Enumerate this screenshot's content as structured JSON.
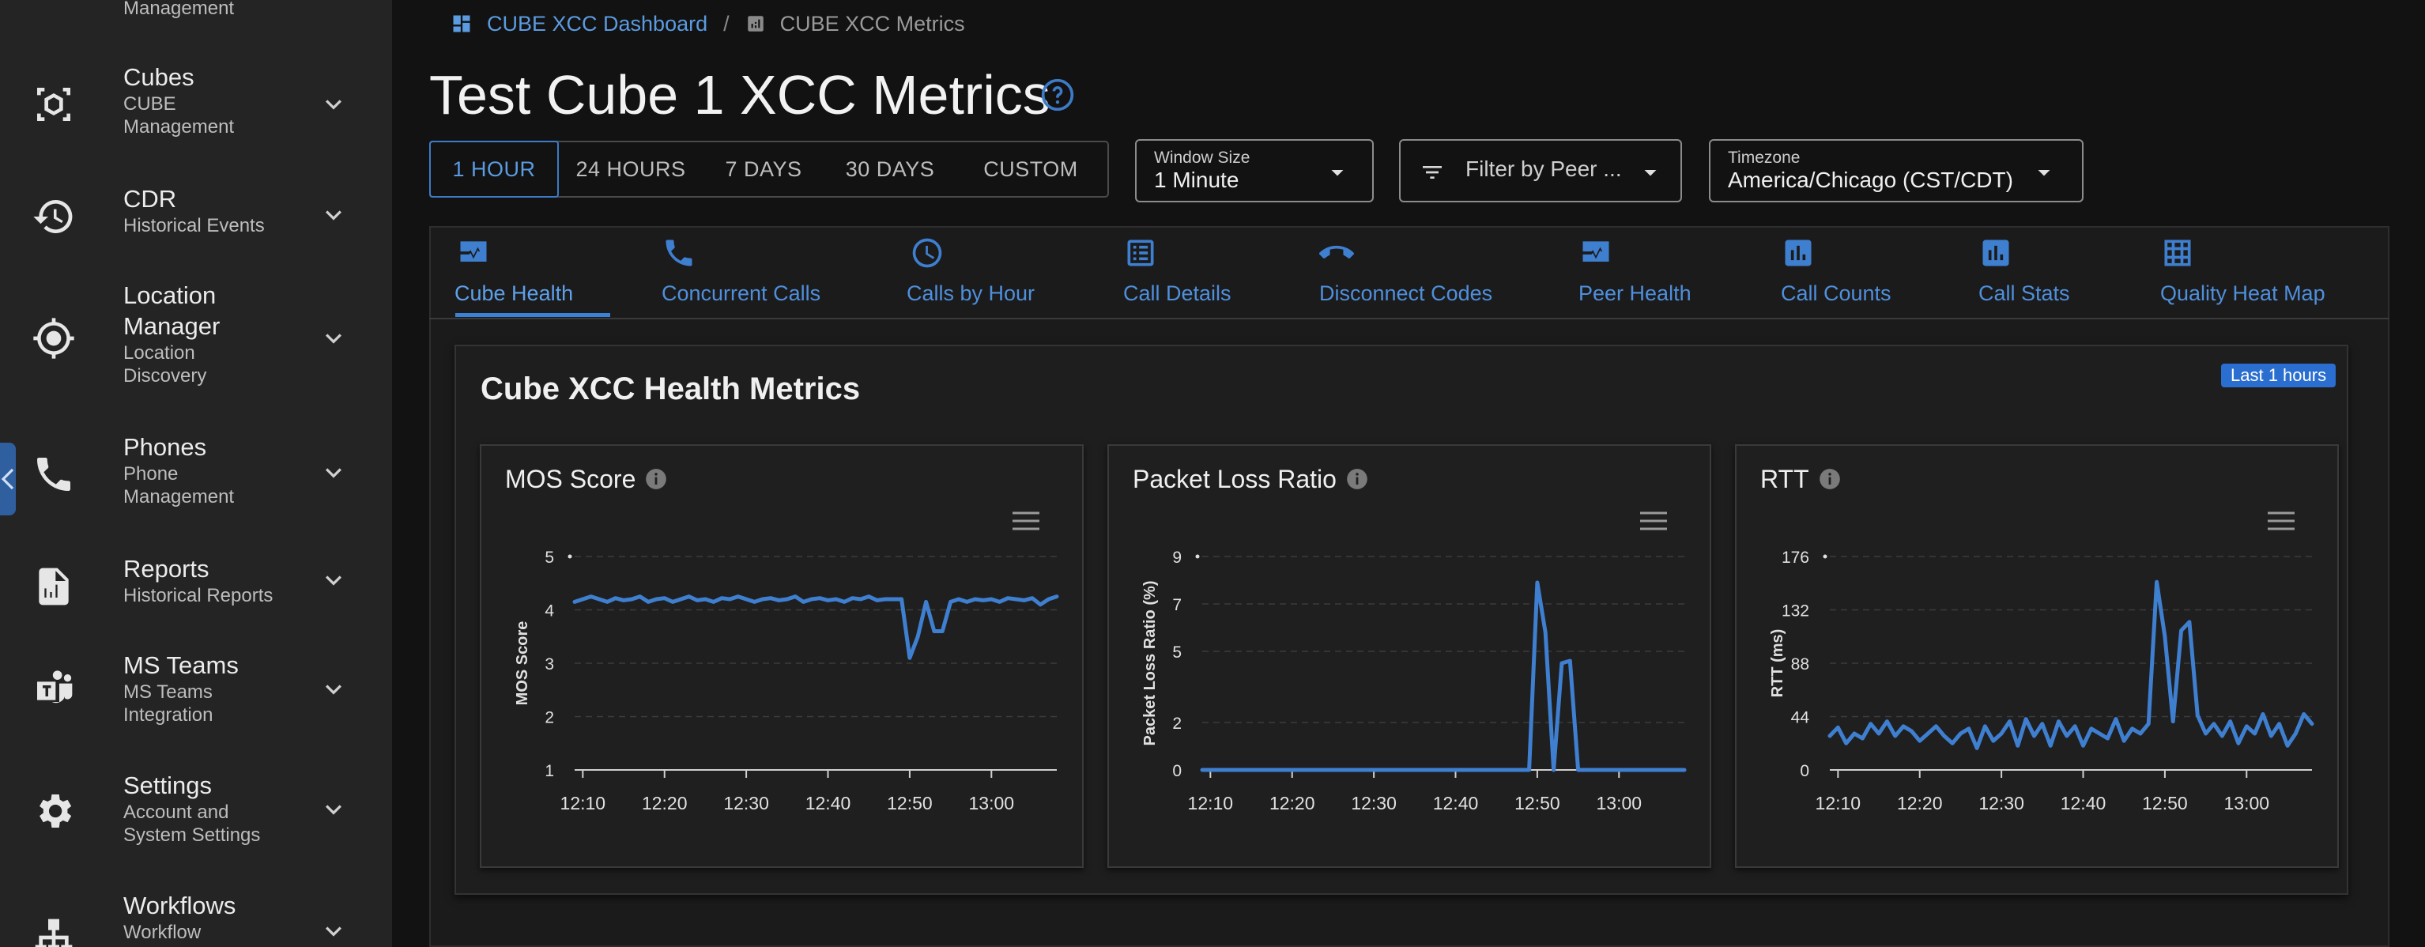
{
  "sidebar": {
    "items": [
      {
        "title": "",
        "sub": [
          "Management"
        ],
        "icon": "none"
      },
      {
        "title": "Cubes",
        "sub": [
          "CUBE",
          "Management"
        ],
        "icon": "cube-icon"
      },
      {
        "title": "CDR",
        "sub": [
          "Historical Events"
        ],
        "icon": "history-icon"
      },
      {
        "title": "Location Manager",
        "title_lines": [
          "Location",
          "Manager"
        ],
        "sub": [
          "Location",
          "Discovery"
        ],
        "icon": "location-target-icon"
      },
      {
        "title": "Phones",
        "sub": [
          "Phone",
          "Management"
        ],
        "icon": "phone-icon"
      },
      {
        "title": "Reports",
        "sub": [
          "Historical Reports"
        ],
        "icon": "report-icon"
      },
      {
        "title": "MS Teams",
        "sub": [
          "MS Teams",
          "Integration"
        ],
        "icon": "teams-icon"
      },
      {
        "title": "Settings",
        "sub": [
          "Account and",
          "System Settings"
        ],
        "icon": "gear-icon"
      },
      {
        "title": "Workflows",
        "sub": [
          "Workflow"
        ],
        "icon": "workflow-icon"
      }
    ]
  },
  "breadcrumb": {
    "link": "CUBE XCC Dashboard",
    "separator": "/",
    "current": "CUBE XCC Metrics"
  },
  "page_title": "Test Cube 1 XCC Metrics",
  "time_ranges": {
    "options": [
      "1 HOUR",
      "24 HOURS",
      "7 DAYS",
      "30 DAYS",
      "CUSTOM"
    ],
    "selected": "1 HOUR"
  },
  "window_size": {
    "label": "Window Size",
    "value": "1 Minute"
  },
  "peer_filter": {
    "placeholder": "Filter by Peer ..."
  },
  "timezone": {
    "label": "Timezone",
    "value": "America/Chicago (CST/CDT)"
  },
  "tabs": [
    {
      "label": "Cube Health",
      "icon": "monitor-heart-icon",
      "active": true
    },
    {
      "label": "Concurrent Calls",
      "icon": "phone-icon"
    },
    {
      "label": "Calls by Hour",
      "icon": "clock-icon"
    },
    {
      "label": "Call Details",
      "icon": "list-icon"
    },
    {
      "label": "Disconnect Codes",
      "icon": "call-end-icon"
    },
    {
      "label": "Peer Health",
      "icon": "monitor-heart-icon"
    },
    {
      "label": "Call Counts",
      "icon": "bar-chart-icon"
    },
    {
      "label": "Call Stats",
      "icon": "bar-chart-icon"
    },
    {
      "label": "Quality Heat Map",
      "icon": "grid-icon"
    }
  ],
  "health": {
    "title": "Cube XCC Health Metrics",
    "badge": "Last 1 hours"
  },
  "colors": {
    "accent": "#3b82d6",
    "line": "#3f7fd0"
  },
  "chart_data": [
    {
      "type": "line",
      "title": "MOS Score",
      "xlabel": "",
      "ylabel": "MOS Score",
      "ylim": [
        1,
        5
      ],
      "yticks": [
        1,
        2,
        3,
        4,
        5
      ],
      "xticks": [
        "12:10",
        "12:20",
        "12:30",
        "12:40",
        "12:50",
        "13:00"
      ],
      "grid": true,
      "x": [
        "12:09",
        "12:10",
        "12:11",
        "12:12",
        "12:13",
        "12:14",
        "12:15",
        "12:16",
        "12:17",
        "12:18",
        "12:19",
        "12:20",
        "12:21",
        "12:22",
        "12:23",
        "12:24",
        "12:25",
        "12:26",
        "12:27",
        "12:28",
        "12:29",
        "12:30",
        "12:31",
        "12:32",
        "12:33",
        "12:34",
        "12:35",
        "12:36",
        "12:37",
        "12:38",
        "12:39",
        "12:40",
        "12:41",
        "12:42",
        "12:43",
        "12:44",
        "12:45",
        "12:46",
        "12:47",
        "12:48",
        "12:49",
        "12:50",
        "12:51",
        "12:52",
        "12:53",
        "12:54",
        "12:55",
        "12:56",
        "12:57",
        "12:58",
        "12:59",
        "13:00",
        "13:01",
        "13:02",
        "13:03",
        "13:04",
        "13:05",
        "13:06",
        "13:07",
        "13:08"
      ],
      "series": [
        {
          "values": [
            4.15,
            4.2,
            4.25,
            4.2,
            4.15,
            4.22,
            4.18,
            4.2,
            4.25,
            4.15,
            4.2,
            4.22,
            4.15,
            4.2,
            4.25,
            4.18,
            4.2,
            4.15,
            4.22,
            4.2,
            4.25,
            4.2,
            4.15,
            4.2,
            4.22,
            4.18,
            4.2,
            4.25,
            4.15,
            4.2,
            4.22,
            4.18,
            4.2,
            4.15,
            4.22,
            4.2,
            4.25,
            4.18,
            4.2,
            4.2,
            4.2,
            3.1,
            3.5,
            4.15,
            3.6,
            3.6,
            4.15,
            4.2,
            4.15,
            4.2,
            4.18,
            4.2,
            4.15,
            4.22,
            4.2,
            4.18,
            4.22,
            4.1,
            4.2,
            4.25
          ]
        }
      ]
    },
    {
      "type": "line",
      "title": "Packet Loss Ratio",
      "xlabel": "",
      "ylabel": "Packet Loss Ratio (%)",
      "ylim": [
        0,
        9
      ],
      "yticks": [
        0,
        2,
        5,
        7,
        9
      ],
      "xticks": [
        "12:10",
        "12:20",
        "12:30",
        "12:40",
        "12:50",
        "13:00"
      ],
      "grid": true,
      "x": [
        "12:09",
        "12:10",
        "12:11",
        "12:12",
        "12:13",
        "12:14",
        "12:15",
        "12:16",
        "12:17",
        "12:18",
        "12:19",
        "12:20",
        "12:21",
        "12:22",
        "12:23",
        "12:24",
        "12:25",
        "12:26",
        "12:27",
        "12:28",
        "12:29",
        "12:30",
        "12:31",
        "12:32",
        "12:33",
        "12:34",
        "12:35",
        "12:36",
        "12:37",
        "12:38",
        "12:39",
        "12:40",
        "12:41",
        "12:42",
        "12:43",
        "12:44",
        "12:45",
        "12:46",
        "12:47",
        "12:48",
        "12:49",
        "12:50",
        "12:51",
        "12:52",
        "12:53",
        "12:54",
        "12:55",
        "12:56",
        "12:57",
        "12:58",
        "12:59",
        "13:00",
        "13:01",
        "13:02",
        "13:03",
        "13:04",
        "13:05",
        "13:06",
        "13:07",
        "13:08"
      ],
      "series": [
        {
          "values": [
            0,
            0,
            0,
            0,
            0,
            0,
            0,
            0,
            0,
            0,
            0,
            0,
            0,
            0,
            0,
            0,
            0,
            0,
            0,
            0,
            0,
            0,
            0,
            0,
            0,
            0,
            0,
            0,
            0,
            0,
            0,
            0,
            0,
            0,
            0,
            0,
            0,
            0,
            0,
            0,
            0,
            7.9,
            5.8,
            0,
            4.5,
            4.6,
            0,
            0,
            0,
            0,
            0,
            0,
            0,
            0,
            0,
            0,
            0,
            0,
            0,
            0
          ]
        }
      ]
    },
    {
      "type": "line",
      "title": "RTT",
      "xlabel": "",
      "ylabel": "RTT (ms)",
      "ylim": [
        0,
        176
      ],
      "yticks": [
        0,
        44,
        88,
        132,
        176
      ],
      "xticks": [
        "12:10",
        "12:20",
        "12:30",
        "12:40",
        "12:50",
        "13:00"
      ],
      "grid": true,
      "x": [
        "12:09",
        "12:10",
        "12:11",
        "12:12",
        "12:13",
        "12:14",
        "12:15",
        "12:16",
        "12:17",
        "12:18",
        "12:19",
        "12:20",
        "12:21",
        "12:22",
        "12:23",
        "12:24",
        "12:25",
        "12:26",
        "12:27",
        "12:28",
        "12:29",
        "12:30",
        "12:31",
        "12:32",
        "12:33",
        "12:34",
        "12:35",
        "12:36",
        "12:37",
        "12:38",
        "12:39",
        "12:40",
        "12:41",
        "12:42",
        "12:43",
        "12:44",
        "12:45",
        "12:46",
        "12:47",
        "12:48",
        "12:49",
        "12:50",
        "12:51",
        "12:52",
        "12:53",
        "12:54",
        "12:55",
        "12:56",
        "12:57",
        "12:58",
        "12:59",
        "13:00",
        "13:01",
        "13:02",
        "13:03",
        "13:04",
        "13:05",
        "13:06",
        "13:07",
        "13:08"
      ],
      "series": [
        {
          "values": [
            28,
            35,
            22,
            30,
            26,
            38,
            30,
            40,
            28,
            36,
            32,
            24,
            30,
            36,
            28,
            22,
            30,
            34,
            18,
            36,
            24,
            30,
            40,
            20,
            42,
            28,
            38,
            20,
            40,
            28,
            36,
            20,
            34,
            30,
            26,
            42,
            24,
            34,
            30,
            38,
            155,
            110,
            40,
            115,
            122,
            45,
            30,
            38,
            28,
            40,
            22,
            36,
            30,
            46,
            28,
            38,
            20,
            30,
            46,
            38
          ]
        }
      ]
    }
  ]
}
